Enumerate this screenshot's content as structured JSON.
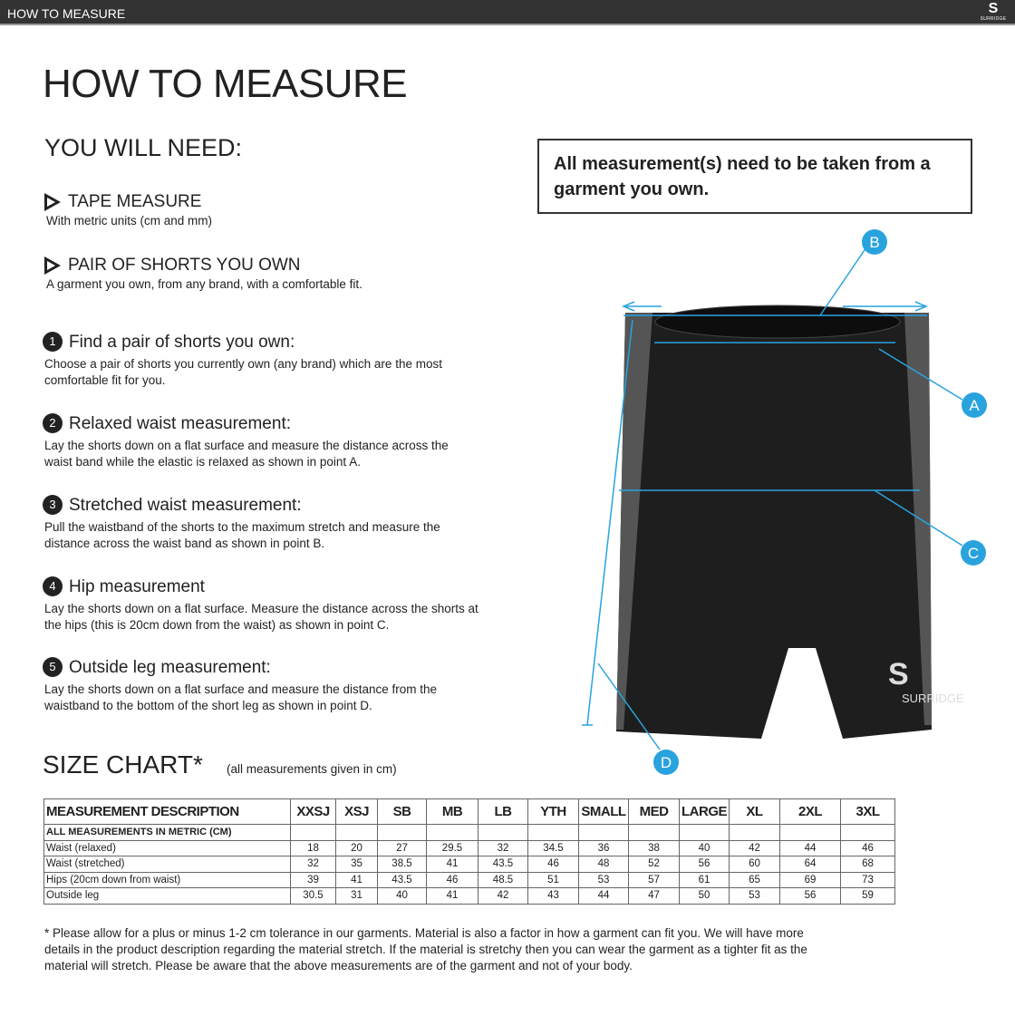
{
  "topbar": {
    "title": "HOW TO MEASURE",
    "logo": "SURRIDGE"
  },
  "title": "HOW TO MEASURE",
  "need": {
    "heading": "YOU WILL NEED:",
    "items": [
      {
        "label": "TAPE MEASURE",
        "desc": "With metric units (cm and mm)"
      },
      {
        "label": "PAIR OF SHORTS YOU OWN",
        "desc": "A garment you own, from any brand, with a comfortable fit."
      }
    ]
  },
  "note": "All measurement(s) need to be taken from a garment you own.",
  "steps": [
    {
      "n": "1",
      "title": "Find a pair of shorts you own:",
      "desc": "Choose a pair of shorts you currently own (any brand) which are the most comfortable fit for you."
    },
    {
      "n": "2",
      "title": "Relaxed waist measurement:",
      "desc": "Lay the shorts down on a flat surface and measure the distance across the waist band while the elastic is relaxed as shown in point A."
    },
    {
      "n": "3",
      "title": "Stretched waist measurement:",
      "desc": "Pull the waistband of the shorts to the maximum stretch and measure the distance across the waist band as shown in point B."
    },
    {
      "n": "4",
      "title": "Hip measurement",
      "desc": "Lay the shorts down on a flat surface. Measure the distance across the shorts at the hips (this is 20cm down from the waist)  as shown in point C."
    },
    {
      "n": "5",
      "title": "Outside leg measurement:",
      "desc": "Lay the shorts down on a flat surface and measure the distance from the waistband to the bottom of the short leg as shown in point D."
    }
  ],
  "diagram": {
    "labels": [
      "A",
      "B",
      "C",
      "D"
    ],
    "brand": "SURRIDGE",
    "accent": "#29a3dd"
  },
  "size_chart": {
    "title": "SIZE CHART*",
    "note": "(all measurements given in cm)",
    "headers": [
      "MEASUREMENT DESCRIPTION",
      "XXSJ",
      "XSJ",
      "SB",
      "MB",
      "LB",
      "YTH",
      "SMALL",
      "MED",
      "LARGE",
      "XL",
      "2XL",
      "3XL"
    ],
    "subheader": "ALL MEASUREMENTS IN METRIC (CM)",
    "rows": [
      [
        "Waist (relaxed)",
        "18",
        "20",
        "27",
        "29.5",
        "32",
        "34.5",
        "36",
        "38",
        "40",
        "42",
        "44",
        "46"
      ],
      [
        "Waist (stretched)",
        "32",
        "35",
        "38.5",
        "41",
        "43.5",
        "46",
        "48",
        "52",
        "56",
        "60",
        "64",
        "68"
      ],
      [
        "Hips (20cm down from waist)",
        "39",
        "41",
        "43.5",
        "46",
        "48.5",
        "51",
        "53",
        "57",
        "61",
        "65",
        "69",
        "73"
      ],
      [
        "Outside leg",
        "30.5",
        "31",
        "40",
        "41",
        "42",
        "43",
        "44",
        "47",
        "50",
        "53",
        "56",
        "59"
      ]
    ]
  },
  "footnote": "* Please allow for a plus or minus 1-2 cm tolerance in our garments. Material is also a factor in how a garment can fit you. We will have more details in the product description regarding the material stretch.  If the material is stretchy then you can wear the garment as a tighter fit as the material will stretch.  Please be aware that the above measurements are of the garment and not of your body."
}
